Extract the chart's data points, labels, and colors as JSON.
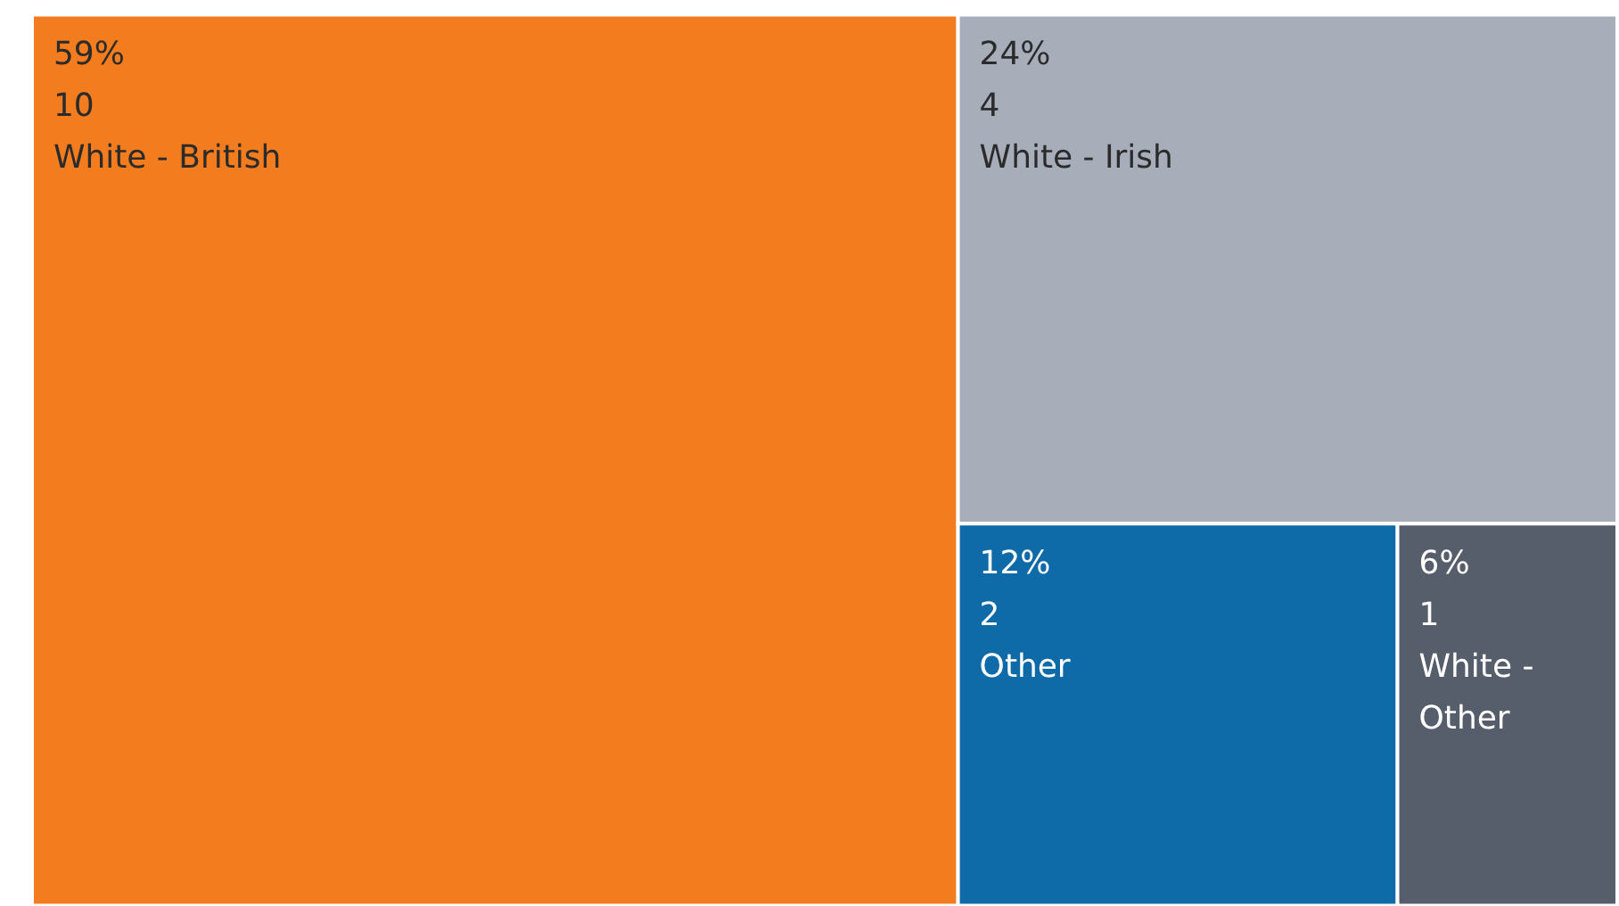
{
  "chart_data": {
    "type": "other",
    "categories": [
      "White - British",
      "White - Irish",
      "Other",
      "White - Other"
    ],
    "values": [
      59,
      24,
      12,
      6
    ],
    "value_labels": [
      "59%\n10",
      "24%\n4",
      "12%\n2",
      "6%\n1"
    ],
    "colors": [
      "#f27c1e",
      "#a7adb9",
      "#0f6aa8",
      "#575e6b"
    ]
  }
}
